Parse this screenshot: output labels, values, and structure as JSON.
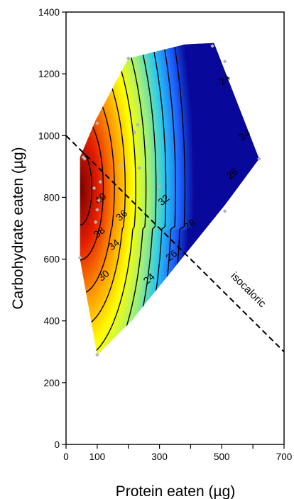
{
  "chart_data": {
    "type": "contour",
    "xlabel": "Protein eaten (µg)",
    "ylabel": "Carbohydrate eaten (µg)",
    "xlim": [
      0,
      700
    ],
    "ylim": [
      0,
      1400
    ],
    "xticks": [
      0,
      100,
      200,
      300,
      400,
      500,
      600,
      700
    ],
    "xtick_labels": [
      "0",
      "100",
      "",
      "300",
      "",
      "500",
      "",
      "700"
    ],
    "yticks": [
      0,
      200,
      400,
      600,
      800,
      1000,
      1200,
      1400
    ],
    "ytick_labels": [
      "0",
      "200",
      "400",
      "600",
      "800",
      "1000",
      "1200",
      "1400"
    ],
    "color_scale": [
      "#08089a",
      "#1e64ff",
      "#28c8f0",
      "#a0f078",
      "#ffff00",
      "#ff9600",
      "#e61e00",
      "#780000"
    ],
    "surface_range": [
      20,
      42
    ],
    "data_region": [
      [
        100,
        290
      ],
      [
        45,
        600
      ],
      [
        45,
        930
      ],
      [
        95,
        1050
      ],
      [
        200,
        1250
      ],
      [
        380,
        1295
      ],
      [
        475,
        1300
      ],
      [
        620,
        925
      ],
      [
        510,
        775
      ],
      [
        210,
        400
      ],
      [
        100,
        290
      ]
    ],
    "contour_levels": [
      22,
      24,
      26,
      28,
      30,
      32,
      34,
      36,
      38,
      40
    ],
    "contour_labels": [
      {
        "text": "24",
        "x": 510,
        "y": 1180
      },
      {
        "text": "24",
        "x": 575,
        "y": 1000
      },
      {
        "text": "26",
        "x": 535,
        "y": 875
      },
      {
        "text": "28",
        "x": 398,
        "y": 710
      },
      {
        "text": "26",
        "x": 340,
        "y": 610
      },
      {
        "text": "24",
        "x": 268,
        "y": 535
      },
      {
        "text": "30",
        "x": 122,
        "y": 545
      },
      {
        "text": "32",
        "x": 315,
        "y": 790
      },
      {
        "text": "34",
        "x": 155,
        "y": 645
      },
      {
        "text": "36",
        "x": 180,
        "y": 740
      },
      {
        "text": "38",
        "x": 108,
        "y": 685
      },
      {
        "text": "40",
        "x": 112,
        "y": 795
      }
    ],
    "data_points": [
      [
        100,
        290
      ],
      [
        45,
        605
      ],
      [
        95,
        720
      ],
      [
        100,
        760
      ],
      [
        105,
        790
      ],
      [
        90,
        830
      ],
      [
        110,
        850
      ],
      [
        175,
        900
      ],
      [
        235,
        895
      ],
      [
        60,
        925
      ],
      [
        55,
        930
      ],
      [
        100,
        1040
      ],
      [
        220,
        1010
      ],
      [
        230,
        1035
      ],
      [
        200,
        1250
      ],
      [
        300,
        835
      ],
      [
        470,
        1290
      ],
      [
        510,
        1240
      ],
      [
        620,
        925
      ],
      [
        510,
        755
      ]
    ],
    "reference_line": {
      "label": "isocaloric",
      "from": [
        0,
        1000
      ],
      "to": [
        700,
        300
      ]
    }
  }
}
